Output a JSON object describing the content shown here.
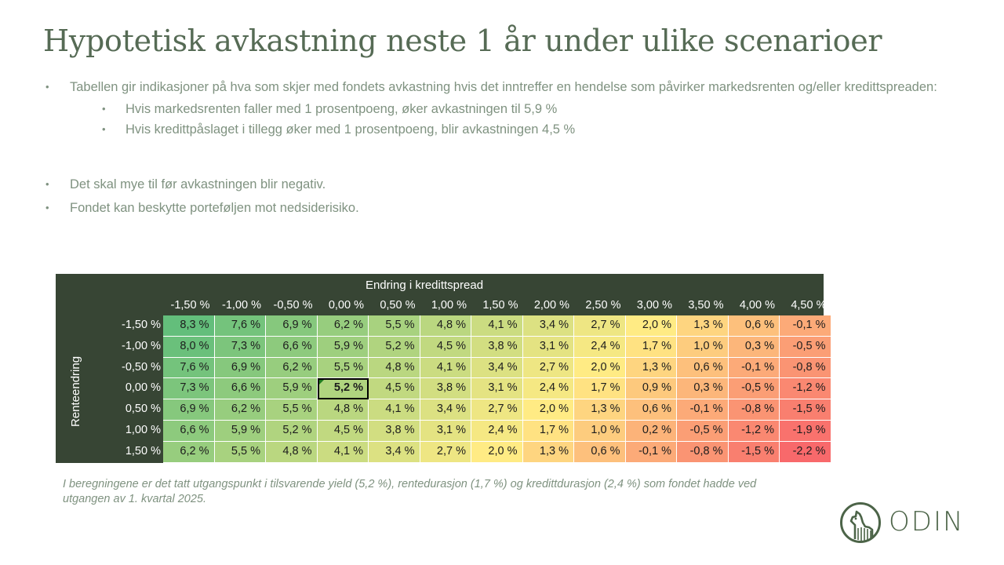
{
  "slide": {
    "title": "Hypotetisk avkastning neste 1 år under ulike scenarioer",
    "bullets": [
      {
        "level": 1,
        "text": "Tabellen gir indikasjoner på hva som skjer med fondets avkastning hvis det inntreffer en hendelse som påvirker markedsrenten og/eller kredittspreaden:"
      },
      {
        "level": 2,
        "text": "Hvis markedsrenten faller med 1 prosentpoeng, øker avkastningen til 5,9 %"
      },
      {
        "level": 2,
        "text": "Hvis kredittpåslaget i tillegg øker med 1 prosentpoeng, blir avkastningen 4,5 %"
      },
      {
        "level": 1,
        "text": "Det skal mye til før avkastningen blir negativ."
      },
      {
        "level": 1,
        "text": "Fondet kan beskytte porteføljen mot nedsiderisiko."
      }
    ],
    "bullet_glyph": "•",
    "footnote": "I beregningene er det tatt utgangspunkt i tilsvarende yield (5,2 %), rentedurasjon (1,7 %) og kredittdurasjon (2,4 %) som fondet hadde ved utgangen av 1. kvartal 2025.",
    "logo_text": "ODIN",
    "logo_icon": "odin-horse-emblem-icon"
  },
  "colors": {
    "title": "#566b55",
    "body_text": "#7f9280",
    "table_header_bg": "#374534",
    "scale_high": "#63be7b",
    "scale_mid": "#ffeb84",
    "scale_low": "#f8696b"
  },
  "chart_data": {
    "type": "heatmap",
    "title": "Endring i kredittspread",
    "xlabel": "Endring i kredittspread",
    "ylabel": "Renteendring",
    "x": [
      "-1,50 %",
      "-1,00 %",
      "-0,50 %",
      "0,00 %",
      "0,50 %",
      "1,00 %",
      "1,50 %",
      "2,00 %",
      "2,50 %",
      "3,00 %",
      "3,50 %",
      "4,00 %",
      "4,50 %"
    ],
    "y": [
      "-1,50 %",
      "-1,00 %",
      "-0,50 %",
      "0,00 %",
      "0,50 %",
      "1,00 %",
      "1,50 %"
    ],
    "values": [
      [
        8.3,
        7.6,
        6.9,
        6.2,
        5.5,
        4.8,
        4.1,
        3.4,
        2.7,
        2.0,
        1.3,
        0.6,
        -0.1
      ],
      [
        8.0,
        7.3,
        6.6,
        5.9,
        5.2,
        4.5,
        3.8,
        3.1,
        2.4,
        1.7,
        1.0,
        0.3,
        -0.5
      ],
      [
        7.6,
        6.9,
        6.2,
        5.5,
        4.8,
        4.1,
        3.4,
        2.7,
        2.0,
        1.3,
        0.6,
        -0.1,
        -0.8
      ],
      [
        7.3,
        6.6,
        5.9,
        5.2,
        4.5,
        3.8,
        3.1,
        2.4,
        1.7,
        0.9,
        0.3,
        -0.5,
        -1.2
      ],
      [
        6.9,
        6.2,
        5.5,
        4.8,
        4.1,
        3.4,
        2.7,
        2.0,
        1.3,
        0.6,
        -0.1,
        -0.8,
        -1.5
      ],
      [
        6.6,
        5.9,
        5.2,
        4.5,
        3.8,
        3.1,
        2.4,
        1.7,
        1.0,
        0.2,
        -0.5,
        -1.2,
        -1.9
      ],
      [
        6.2,
        5.5,
        4.8,
        4.1,
        3.4,
        2.7,
        2.0,
        1.3,
        0.6,
        -0.1,
        -0.8,
        -1.5,
        -2.2
      ]
    ],
    "labels": [
      [
        "8,3 %",
        "7,6 %",
        "6,9 %",
        "6,2 %",
        "5,5 %",
        "4,8 %",
        "4,1 %",
        "3,4 %",
        "2,7 %",
        "2,0 %",
        "1,3 %",
        "0,6 %",
        "-0,1 %"
      ],
      [
        "8,0 %",
        "7,3 %",
        "6,6 %",
        "5,9 %",
        "5,2 %",
        "4,5 %",
        "3,8 %",
        "3,1 %",
        "2,4 %",
        "1,7 %",
        "1,0 %",
        "0,3 %",
        "-0,5 %"
      ],
      [
        "7,6 %",
        "6,9 %",
        "6,2 %",
        "5,5 %",
        "4,8 %",
        "4,1 %",
        "3,4 %",
        "2,7 %",
        "2,0 %",
        "1,3 %",
        "0,6 %",
        "-0,1 %",
        "-0,8 %"
      ],
      [
        "7,3 %",
        "6,6 %",
        "5,9 %",
        "5,2 %",
        "4,5 %",
        "3,8 %",
        "3,1 %",
        "2,4 %",
        "1,7 %",
        "0,9 %",
        "0,3 %",
        "-0,5 %",
        "-1,2 %"
      ],
      [
        "6,9 %",
        "6,2 %",
        "5,5 %",
        "4,8 %",
        "4,1 %",
        "3,4 %",
        "2,7 %",
        "2,0 %",
        "1,3 %",
        "0,6 %",
        "-0,1 %",
        "-0,8 %",
        "-1,5 %"
      ],
      [
        "6,6 %",
        "5,9 %",
        "5,2 %",
        "4,5 %",
        "3,8 %",
        "3,1 %",
        "2,4 %",
        "1,7 %",
        "1,0 %",
        "0,2 %",
        "-0,5 %",
        "-1,2 %",
        "-1,9 %"
      ],
      [
        "6,2 %",
        "5,5 %",
        "4,8 %",
        "4,1 %",
        "3,4 %",
        "2,7 %",
        "2,0 %",
        "1,3 %",
        "0,6 %",
        "-0,1 %",
        "-0,8 %",
        "-1,5 %",
        "-2,2 %"
      ]
    ],
    "highlighted_cell": {
      "row": 3,
      "col": 3,
      "label": "5,2 %"
    },
    "color_scale": {
      "min": -2.2,
      "mid": 2.0,
      "max": 8.3
    }
  }
}
